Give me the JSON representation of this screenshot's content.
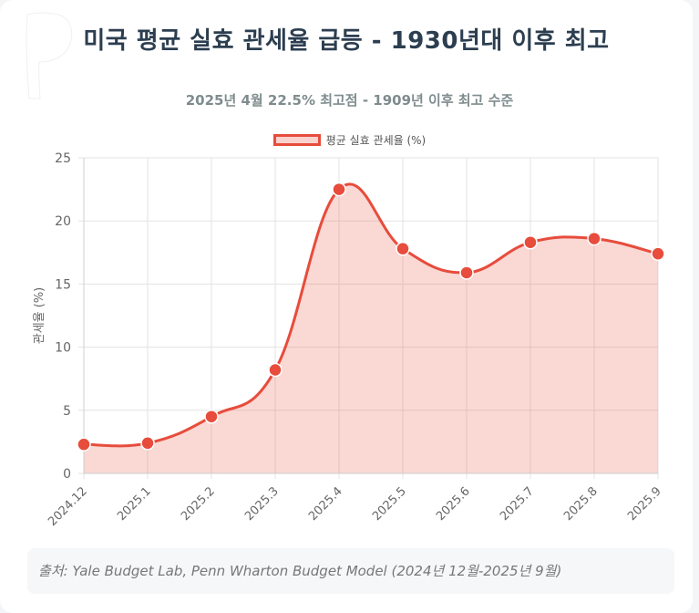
{
  "header": {
    "title": "미국 평균 실효 관세율 급등 - 1930년대 이후 최고",
    "subtitle": "2025년 4월 22.5% 최고점 - 1909년 이후 최고 수준"
  },
  "footer": {
    "source": "출처: Yale Budget Lab, Penn Wharton Budget Model (2024년 12월-2025년 9월)"
  },
  "colors": {
    "line": "#e74c3c",
    "fill": "rgba(231, 76, 60, 0.22)",
    "grid": "#e3e3e3",
    "title": "#2c3e50"
  },
  "chart_data": {
    "type": "area",
    "title": "미국 평균 실효 관세율 급등 - 1930년대 이후 최고",
    "subtitle": "2025년 4월 22.5% 최고점 - 1909년 이후 최고 수준",
    "categories": [
      "2024.12",
      "2025.1",
      "2025.2",
      "2025.3",
      "2025.4",
      "2025.5",
      "2025.6",
      "2025.7",
      "2025.8",
      "2025.9"
    ],
    "series": [
      {
        "name": "평균 실효 관세율 (%)",
        "values": [
          2.3,
          2.4,
          4.5,
          8.2,
          22.5,
          17.8,
          15.9,
          18.3,
          18.6,
          17.4
        ]
      }
    ],
    "xlabel": "",
    "ylabel": "관세율 (%)",
    "ylim": [
      0,
      25
    ],
    "yticks": [
      0,
      5,
      10,
      15,
      20,
      25
    ],
    "grid": true,
    "legend": "top-center"
  }
}
